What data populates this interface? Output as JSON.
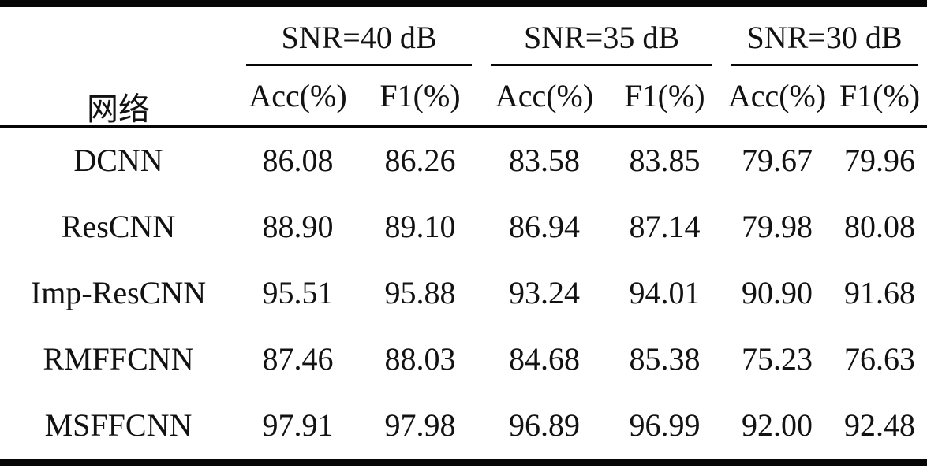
{
  "table": {
    "row_header": "网络",
    "groups": [
      {
        "label": "SNR=40 dB",
        "columns": [
          "Acc(%)",
          "F1(%)"
        ]
      },
      {
        "label": "SNR=35 dB",
        "columns": [
          "Acc(%)",
          "F1(%)"
        ]
      },
      {
        "label": "SNR=30 dB",
        "columns": [
          "Acc(%)",
          "F1(%)"
        ]
      }
    ],
    "rows": [
      {
        "network": "DCNN",
        "values": [
          "86.08",
          "86.26",
          "83.58",
          "83.85",
          "79.67",
          "79.96"
        ]
      },
      {
        "network": "ResCNN",
        "values": [
          "88.90",
          "89.10",
          "86.94",
          "87.14",
          "79.98",
          "80.08"
        ]
      },
      {
        "network": "Imp-ResCNN",
        "values": [
          "95.51",
          "95.88",
          "93.24",
          "94.01",
          "90.90",
          "91.68"
        ]
      },
      {
        "network": "RMFFCNN",
        "values": [
          "87.46",
          "88.03",
          "84.68",
          "85.38",
          "75.23",
          "76.63"
        ]
      },
      {
        "network": "MSFFCNN",
        "values": [
          "97.91",
          "97.98",
          "96.89",
          "96.99",
          "92.00",
          "92.48"
        ]
      }
    ]
  },
  "colors": {
    "text": "#121212",
    "rule": "#060606",
    "background": "#ffffff"
  },
  "chart_data": {
    "type": "table",
    "title": "",
    "row_header": "网络",
    "column_groups": [
      "SNR=40 dB",
      "SNR=35 dB",
      "SNR=30 dB"
    ],
    "sub_columns": [
      "Acc(%)",
      "F1(%)"
    ],
    "categories": [
      "DCNN",
      "ResCNN",
      "Imp-ResCNN",
      "RMFFCNN",
      "MSFFCNN"
    ],
    "series": [
      {
        "name": "SNR=40 dB Acc(%)",
        "values": [
          86.08,
          88.9,
          95.51,
          87.46,
          97.91
        ]
      },
      {
        "name": "SNR=40 dB F1(%)",
        "values": [
          86.26,
          89.1,
          95.88,
          88.03,
          97.98
        ]
      },
      {
        "name": "SNR=35 dB Acc(%)",
        "values": [
          83.58,
          86.94,
          93.24,
          84.68,
          96.89
        ]
      },
      {
        "name": "SNR=35 dB F1(%)",
        "values": [
          83.85,
          87.14,
          94.01,
          85.38,
          96.99
        ]
      },
      {
        "name": "SNR=30 dB Acc(%)",
        "values": [
          79.67,
          79.98,
          90.9,
          75.23,
          92.0
        ]
      },
      {
        "name": "SNR=30 dB F1(%)",
        "values": [
          79.96,
          80.08,
          91.68,
          76.63,
          92.48
        ]
      }
    ]
  }
}
